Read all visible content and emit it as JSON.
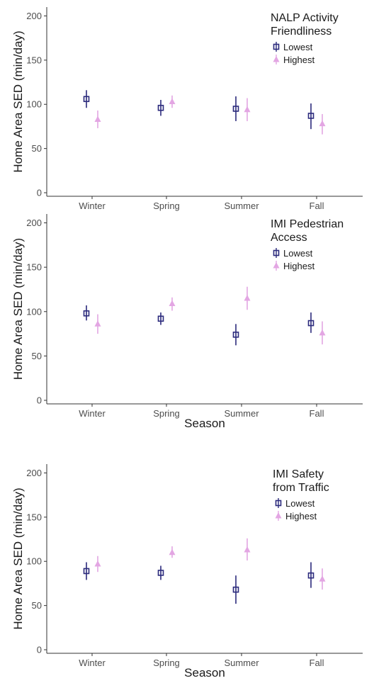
{
  "chart_data": [
    {
      "type": "scatter",
      "title": "",
      "xlabel": "",
      "ylabel": "Home Area SED (min/day)",
      "categories": [
        "Winter",
        "Spring",
        "Summer",
        "Fall"
      ],
      "ylim": [
        0,
        210
      ],
      "yticks": [
        0,
        50,
        100,
        150,
        200
      ],
      "grid": false,
      "legend": {
        "title_lines": [
          "NALP Activity",
          "Friendliness"
        ],
        "placement": "top-right"
      },
      "series": [
        {
          "name": "Lowest",
          "color": "#2b2a7c",
          "marker": "open-square",
          "values": [
            106,
            96,
            95,
            87
          ],
          "lower": [
            96,
            87,
            81,
            72
          ],
          "upper": [
            116,
            105,
            109,
            101
          ]
        },
        {
          "name": "Highest",
          "color": "#e3a6e3",
          "marker": "triangle",
          "values": [
            83,
            103,
            94,
            78
          ],
          "lower": [
            73,
            96,
            81,
            66
          ],
          "upper": [
            93,
            110,
            107,
            89
          ]
        }
      ]
    },
    {
      "type": "scatter",
      "title": "",
      "xlabel": "Season",
      "ylabel": "Home Area SED (min/day)",
      "categories": [
        "Winter",
        "Spring",
        "Summer",
        "Fall"
      ],
      "ylim": [
        0,
        210
      ],
      "yticks": [
        0,
        50,
        100,
        150,
        200
      ],
      "grid": false,
      "legend": {
        "title_lines": [
          "IMI Pedestrian",
          "Access"
        ],
        "placement": "top-right"
      },
      "series": [
        {
          "name": "Lowest",
          "color": "#2b2a7c",
          "marker": "open-square",
          "values": [
            98,
            92,
            74,
            87
          ],
          "lower": [
            90,
            85,
            62,
            76
          ],
          "upper": [
            107,
            99,
            86,
            99
          ]
        },
        {
          "name": "Highest",
          "color": "#e3a6e3",
          "marker": "triangle",
          "values": [
            86,
            109,
            115,
            76
          ],
          "lower": [
            75,
            101,
            102,
            63
          ],
          "upper": [
            97,
            116,
            128,
            89
          ]
        }
      ]
    },
    {
      "type": "scatter",
      "title": "",
      "xlabel": "Season",
      "ylabel": "Home Area SED (min/day)",
      "categories": [
        "Winter",
        "Spring",
        "Summer",
        "Fall"
      ],
      "ylim": [
        0,
        210
      ],
      "yticks": [
        0,
        50,
        100,
        150,
        200
      ],
      "grid": false,
      "legend": {
        "title_lines": [
          "IMI Safety",
          "from Traffic"
        ],
        "placement": "top-right"
      },
      "series": [
        {
          "name": "Lowest",
          "color": "#2b2a7c",
          "marker": "open-square",
          "values": [
            89,
            87,
            68,
            84
          ],
          "lower": [
            79,
            79,
            52,
            70
          ],
          "upper": [
            99,
            95,
            84,
            99
          ]
        },
        {
          "name": "Highest",
          "color": "#e3a6e3",
          "marker": "triangle",
          "values": [
            97,
            110,
            113,
            80
          ],
          "lower": [
            88,
            104,
            101,
            68
          ],
          "upper": [
            106,
            117,
            126,
            92
          ]
        }
      ]
    }
  ]
}
